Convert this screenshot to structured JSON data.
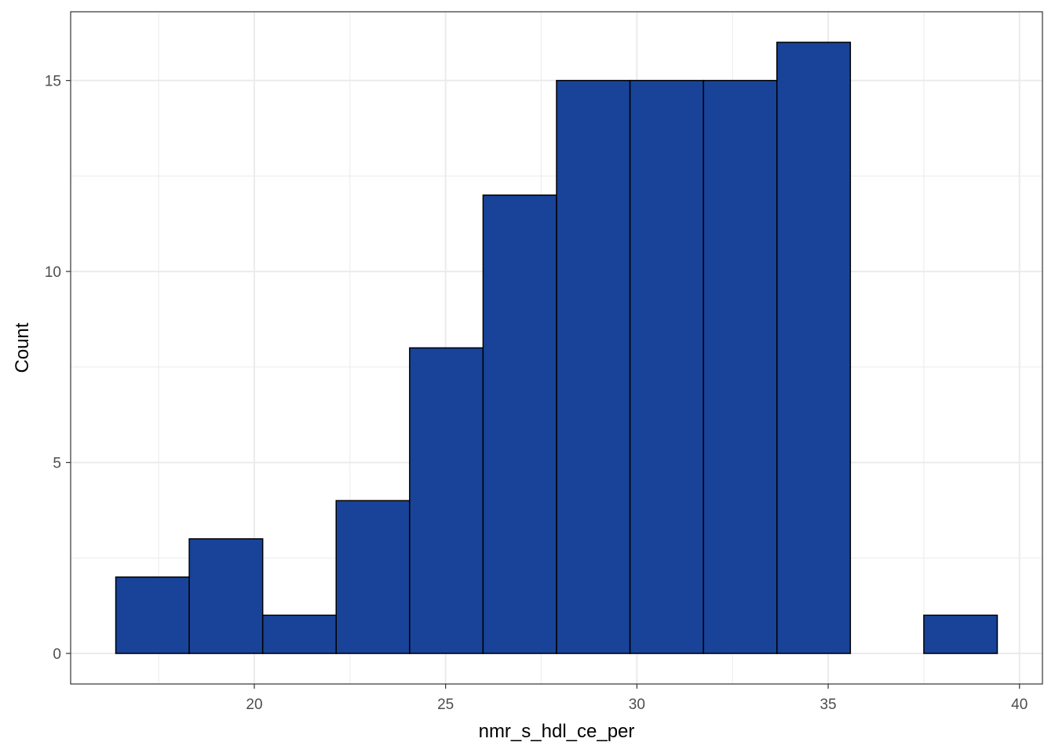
{
  "chart_data": {
    "type": "histogram",
    "title": "",
    "xlabel": "nmr_s_hdl_ce_per",
    "ylabel": "Count",
    "bin_width": 1.92,
    "bins": [
      {
        "x0": 16.38,
        "x1": 18.3,
        "count": 2
      },
      {
        "x0": 18.3,
        "x1": 20.22,
        "count": 3
      },
      {
        "x0": 20.22,
        "x1": 22.14,
        "count": 1
      },
      {
        "x0": 22.14,
        "x1": 24.06,
        "count": 4
      },
      {
        "x0": 24.06,
        "x1": 25.98,
        "count": 8
      },
      {
        "x0": 25.98,
        "x1": 27.9,
        "count": 12
      },
      {
        "x0": 27.9,
        "x1": 29.82,
        "count": 15
      },
      {
        "x0": 29.82,
        "x1": 31.74,
        "count": 15
      },
      {
        "x0": 31.74,
        "x1": 33.66,
        "count": 15
      },
      {
        "x0": 33.66,
        "x1": 35.58,
        "count": 16
      },
      {
        "x0": 35.58,
        "x1": 37.5,
        "count": 0
      },
      {
        "x0": 37.5,
        "x1": 39.42,
        "count": 1
      }
    ],
    "xlim": [
      15.2,
      40.6
    ],
    "ylim": [
      -0.8,
      16.8
    ],
    "x_ticks": [
      20,
      25,
      30,
      35,
      40
    ],
    "x_tick_labels": [
      "20",
      "25",
      "30",
      "35",
      "40"
    ],
    "y_ticks": [
      0,
      5,
      10,
      15
    ],
    "y_tick_labels": [
      "0",
      "5",
      "10",
      "15"
    ],
    "grid": true,
    "legend": "none",
    "colors": {
      "bar_fill": "#184399",
      "bar_stroke": "#000000",
      "grid": "#ebebeb",
      "panel_border": "#333333",
      "tick_text": "#4d4d4d"
    }
  }
}
